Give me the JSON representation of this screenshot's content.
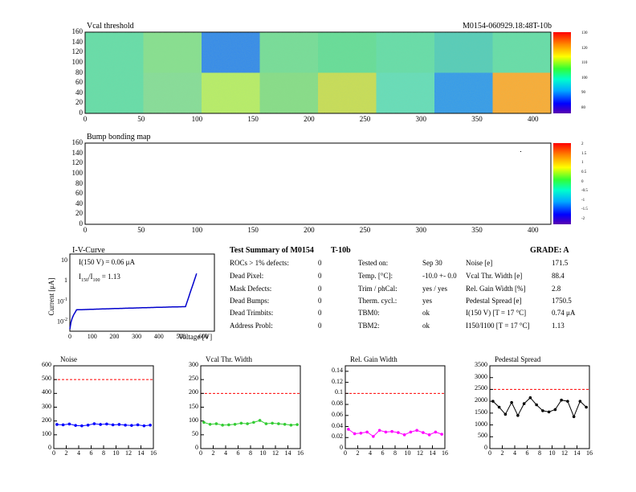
{
  "vcal_map": {
    "title": "Vcal threshold",
    "module_id": "M0154-060929.18:48T-10b",
    "x_ticks": [
      "0",
      "50",
      "100",
      "150",
      "200",
      "250",
      "300",
      "350",
      "400"
    ],
    "y_ticks": [
      "0",
      "20",
      "40",
      "60",
      "80",
      "100",
      "120",
      "140",
      "160"
    ],
    "palette_labels": [
      "130",
      "120",
      "110",
      "100",
      "90",
      "80"
    ]
  },
  "bump_map": {
    "title": "Bump bonding map",
    "x_ticks": [
      "0",
      "50",
      "100",
      "150",
      "200",
      "250",
      "300",
      "350",
      "400"
    ],
    "y_ticks": [
      "0",
      "20",
      "40",
      "60",
      "80",
      "100",
      "120",
      "140",
      "160"
    ],
    "palette_labels": [
      "2",
      "1.5",
      "1",
      "0.5",
      "0",
      "-0.5",
      "-1",
      "-1.5",
      "-2"
    ]
  },
  "iv": {
    "title": "I-V-Curve",
    "xlabel": "Voltage [V]",
    "ylabel": "Current [μA]",
    "ann1_a": "I(150 V) = 0.06",
    "ann1_unit": "μA",
    "ann2_i": "I",
    "ann2_sub1": "150",
    "ann2_slash": "/I",
    "ann2_sub2": "100",
    "ann2_val": "= 1.13",
    "x_ticks": [
      "0",
      "100",
      "200",
      "300",
      "400",
      "500",
      "600"
    ],
    "y_ticks": [
      {
        "base": "10",
        "exp": "-2"
      },
      {
        "base": "10",
        "exp": "-1"
      },
      {
        "base": "1",
        "exp": ""
      },
      {
        "base": "10",
        "exp": ""
      }
    ]
  },
  "summary": {
    "title": "Test Summary of M0154",
    "title2": "T-10b",
    "grade": "GRADE:  A",
    "col1": [
      {
        "label": "ROCs > 1% defects:",
        "value": "0"
      },
      {
        "label": "Dead Pixel:",
        "value": "0"
      },
      {
        "label": "Mask Defects:",
        "value": "0"
      },
      {
        "label": "Dead Bumps:",
        "value": "0"
      },
      {
        "label": "Dead Trimbits:",
        "value": "0"
      },
      {
        "label": "Address Probl:",
        "value": "0"
      }
    ],
    "col2": [
      {
        "label": "Tested on:",
        "value": "Sep 30"
      },
      {
        "label": "Temp. [°C]:",
        "value": "-10.0 +- 0.0"
      },
      {
        "label": "Trim / phCal:",
        "value": "yes / yes"
      },
      {
        "label": "Therm. cycl.:",
        "value": "yes"
      },
      {
        "label": "TBM0:",
        "value": "ok"
      },
      {
        "label": "TBM2:",
        "value": "ok"
      }
    ],
    "col3": [
      {
        "label": "Noise [e]",
        "value": "171.5"
      },
      {
        "label": "Vcal Thr. Width [e]",
        "value": "88.4"
      },
      {
        "label": "Rel. Gain Width [%]",
        "value": "2.8"
      },
      {
        "label": "Pedestal Spread [e]",
        "value": "1750.5"
      },
      {
        "label": "I(150 V) [T = 17 °C]",
        "value": "0.74 μA"
      },
      {
        "label": "I150/I100  [T = 17 °C]",
        "value": "1.13"
      }
    ]
  },
  "chart_data": [
    {
      "type": "line",
      "title": "Noise",
      "x": [
        0,
        1,
        2,
        3,
        4,
        5,
        6,
        7,
        8,
        9,
        10,
        11,
        12,
        13,
        14,
        15
      ],
      "values": [
        175,
        172,
        178,
        168,
        165,
        170,
        180,
        175,
        178,
        172,
        175,
        170,
        168,
        172,
        165,
        170
      ],
      "ylim": [
        0,
        600
      ],
      "y_ticks": [
        0,
        100,
        200,
        300,
        400,
        500,
        600
      ],
      "xlim": [
        0,
        16
      ],
      "x_ticks": [
        0,
        2,
        4,
        6,
        8,
        10,
        12,
        14,
        16
      ],
      "limit": 500,
      "color": "#0000ff"
    },
    {
      "type": "line",
      "title": "Vcal Thr. Width",
      "x": [
        0,
        1,
        2,
        3,
        4,
        5,
        6,
        7,
        8,
        9,
        10,
        11,
        12,
        13,
        14,
        15
      ],
      "values": [
        95,
        88,
        90,
        85,
        86,
        88,
        92,
        90,
        95,
        102,
        90,
        92,
        90,
        88,
        85,
        87
      ],
      "ylim": [
        0,
        300
      ],
      "y_ticks": [
        0,
        50,
        100,
        150,
        200,
        250,
        300
      ],
      "xlim": [
        0,
        16
      ],
      "x_ticks": [
        0,
        2,
        4,
        6,
        8,
        10,
        12,
        14,
        16
      ],
      "limit": 200,
      "color": "#33cc33"
    },
    {
      "type": "line",
      "title": "Rel. Gain Width",
      "x": [
        0,
        1,
        2,
        3,
        4,
        5,
        6,
        7,
        8,
        9,
        10,
        11,
        12,
        13,
        14,
        15
      ],
      "values": [
        0.035,
        0.027,
        0.028,
        0.03,
        0.022,
        0.033,
        0.03,
        0.031,
        0.029,
        0.025,
        0.03,
        0.033,
        0.029,
        0.025,
        0.03,
        0.026
      ],
      "ylim": [
        0,
        0.15
      ],
      "y_ticks": [
        "0",
        "0.02",
        "0.04",
        "0.06",
        "0.08",
        "0.1",
        "0.12",
        "0.14"
      ],
      "xlim": [
        0,
        16
      ],
      "x_ticks": [
        0,
        2,
        4,
        6,
        8,
        10,
        12,
        14,
        16
      ],
      "limit": 0.1,
      "color": "#ff00ff"
    },
    {
      "type": "line",
      "title": "Pedestal Spread",
      "x": [
        0,
        1,
        2,
        3,
        4,
        5,
        6,
        7,
        8,
        9,
        10,
        11,
        12,
        13,
        14,
        15
      ],
      "values": [
        2000,
        1750,
        1450,
        1950,
        1400,
        1900,
        2150,
        1850,
        1600,
        1550,
        1650,
        2050,
        2000,
        1350,
        2000,
        1750
      ],
      "ylim": [
        0,
        3500
      ],
      "y_ticks": [
        0,
        500,
        1000,
        1500,
        2000,
        2500,
        3000,
        3500
      ],
      "xlim": [
        0,
        16
      ],
      "x_ticks": [
        0,
        2,
        4,
        6,
        8,
        10,
        12,
        14,
        16
      ],
      "limit": 2500,
      "color": "#000000"
    }
  ]
}
